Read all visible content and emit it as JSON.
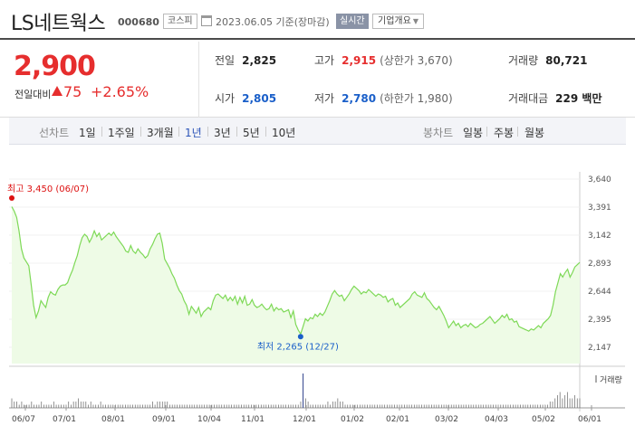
{
  "header": {
    "stock_name": "LS네트웍스",
    "stock_code": "000680",
    "market": "코스피",
    "base_date": "2023.06.05 기준(장마감)",
    "realtime_label": "실시간",
    "company_overview_label": "기업개요"
  },
  "quote": {
    "price": "2,900",
    "change_label": "전일대비",
    "change_value": "75",
    "change_rate": "+2.65%",
    "prev_close_label": "전일",
    "prev_close": "2,825",
    "high_label": "고가",
    "high": "2,915",
    "upper_limit": "(상한가 3,670)",
    "volume_label": "거래량",
    "volume": "80,721",
    "open_label": "시가",
    "open": "2,805",
    "low_label": "저가",
    "low": "2,780",
    "lower_limit": "(하한가 1,980)",
    "amount_label": "거래대금",
    "amount": "229 백만"
  },
  "toolbar": {
    "line_label": "선차트",
    "line_periods": [
      "1일",
      "1주일",
      "3개월",
      "1년",
      "3년",
      "5년",
      "10년"
    ],
    "active_period": "1년",
    "candle_label": "봉차트",
    "candle_periods": [
      "일봉",
      "주봉",
      "월봉"
    ]
  },
  "colors": {
    "up": "#e62e2e",
    "down": "#1a5fc9",
    "line": "#7ed957",
    "fill": "#eefbe6"
  },
  "chart_data": {
    "type": "area",
    "y_ticks": [
      "3,640",
      "3,391",
      "3,142",
      "2,893",
      "2,644",
      "2,395",
      "2,147"
    ],
    "ylim": [
      2147,
      3640
    ],
    "x_labels": [
      "06/07",
      "07/01",
      "08/01",
      "09/01",
      "10/04",
      "11/01",
      "12/01",
      "01/02",
      "02/01",
      "03/02",
      "04/03",
      "05/02",
      "06/01"
    ],
    "high_annotation": "최고 3,450 (06/07)",
    "low_annotation": "최저 2,265 (12/27)",
    "volume_label": "거래량",
    "series": [
      {
        "values": [
          3395,
          3355,
          3300,
          3180,
          3020,
          2940,
          2905,
          2870,
          2705,
          2520,
          2410,
          2470,
          2560,
          2530,
          2500,
          2590,
          2640,
          2620,
          2610,
          2660,
          2690,
          2700,
          2700,
          2720,
          2780,
          2830,
          2900,
          2960,
          3050,
          3120,
          3150,
          3130,
          3080,
          3120,
          3180,
          3130,
          3160,
          3100,
          3120,
          3140,
          3160,
          3140,
          3170,
          3130,
          3100,
          3070,
          3040,
          3000,
          2990,
          3050,
          3000,
          2980,
          3020,
          2990,
          2970,
          2940,
          2960,
          3020,
          3060,
          3110,
          3150,
          3160,
          3070,
          2930,
          2890,
          2850,
          2800,
          2760,
          2700,
          2650,
          2620,
          2560,
          2520,
          2440,
          2510,
          2480,
          2450,
          2500,
          2420,
          2460,
          2480,
          2500,
          2480,
          2560,
          2610,
          2620,
          2600,
          2580,
          2610,
          2560,
          2590,
          2560,
          2600,
          2530,
          2590,
          2540,
          2600,
          2520,
          2530,
          2570,
          2520,
          2500,
          2510,
          2530,
          2500,
          2480,
          2490,
          2530,
          2470,
          2500,
          2480,
          2490,
          2460,
          2470,
          2480,
          2410,
          2470,
          2350,
          2300,
          2265,
          2330,
          2400,
          2380,
          2410,
          2400,
          2440,
          2420,
          2450,
          2430,
          2460,
          2510,
          2560,
          2620,
          2650,
          2620,
          2600,
          2610,
          2560,
          2590,
          2620,
          2660,
          2690,
          2670,
          2650,
          2620,
          2640,
          2630,
          2660,
          2640,
          2620,
          2600,
          2620,
          2610,
          2590,
          2600,
          2550,
          2570,
          2580,
          2520,
          2540,
          2500,
          2520,
          2540,
          2560,
          2580,
          2620,
          2640,
          2610,
          2600,
          2590,
          2630,
          2580,
          2560,
          2530,
          2500,
          2480,
          2510,
          2470,
          2430,
          2380,
          2320,
          2350,
          2380,
          2340,
          2360,
          2320,
          2340,
          2350,
          2330,
          2360,
          2340,
          2320,
          2330,
          2350,
          2360,
          2380,
          2400,
          2420,
          2390,
          2360,
          2380,
          2400,
          2430,
          2410,
          2440,
          2390,
          2400,
          2370,
          2380,
          2330,
          2320,
          2310,
          2300,
          2290,
          2310,
          2300,
          2320,
          2340,
          2320,
          2360,
          2380,
          2400,
          2430,
          2520,
          2640,
          2720,
          2800,
          2770,
          2810,
          2840,
          2770,
          2810,
          2860,
          2880,
          2900
        ]
      }
    ],
    "volumes": [
      3,
      2,
      2,
      1,
      2,
      1,
      1,
      1,
      2,
      1,
      1,
      1,
      2,
      1,
      1,
      1,
      1,
      2,
      1,
      1,
      1,
      1,
      1,
      2,
      1,
      2,
      2,
      3,
      2,
      2,
      2,
      1,
      2,
      1,
      1,
      1,
      2,
      1,
      1,
      1,
      1,
      1,
      1,
      1,
      1,
      1,
      1,
      1,
      1,
      1,
      1,
      1,
      1,
      1,
      1,
      1,
      1,
      2,
      1,
      2,
      2,
      2,
      2,
      2,
      1,
      1,
      1,
      1,
      1,
      1,
      1,
      1,
      1,
      1,
      1,
      1,
      1,
      1,
      1,
      1,
      1,
      1,
      1,
      1,
      1,
      1,
      1,
      1,
      1,
      1,
      1,
      1,
      1,
      1,
      1,
      1,
      1,
      1,
      1,
      1,
      1,
      1,
      1,
      1,
      1,
      1,
      1,
      1,
      1,
      1,
      1,
      1,
      1,
      1,
      1,
      1,
      1,
      2,
      2,
      3,
      2,
      1,
      1,
      1,
      1,
      1,
      1,
      1,
      2,
      1,
      2,
      2,
      3,
      2,
      2,
      1,
      1,
      1,
      1,
      1,
      1,
      1,
      1,
      1,
      1,
      1,
      1,
      1,
      1,
      1,
      1,
      1,
      1,
      1,
      1,
      1,
      1,
      1,
      1,
      1,
      1,
      1,
      1,
      1,
      1,
      1,
      1,
      1,
      1,
      1,
      1,
      1,
      1,
      1,
      1,
      1,
      1,
      1,
      1,
      1,
      1,
      1,
      1,
      1,
      1,
      1,
      1,
      1,
      1,
      1,
      1,
      1,
      1,
      1,
      1,
      1,
      1,
      1,
      1,
      1,
      1,
      1,
      1,
      1,
      1,
      1,
      1,
      1,
      1,
      1,
      1,
      1,
      1,
      1,
      1,
      1,
      1,
      1,
      2,
      2,
      3,
      4,
      5,
      3,
      4,
      5,
      3,
      3,
      4,
      3,
      3
    ]
  }
}
